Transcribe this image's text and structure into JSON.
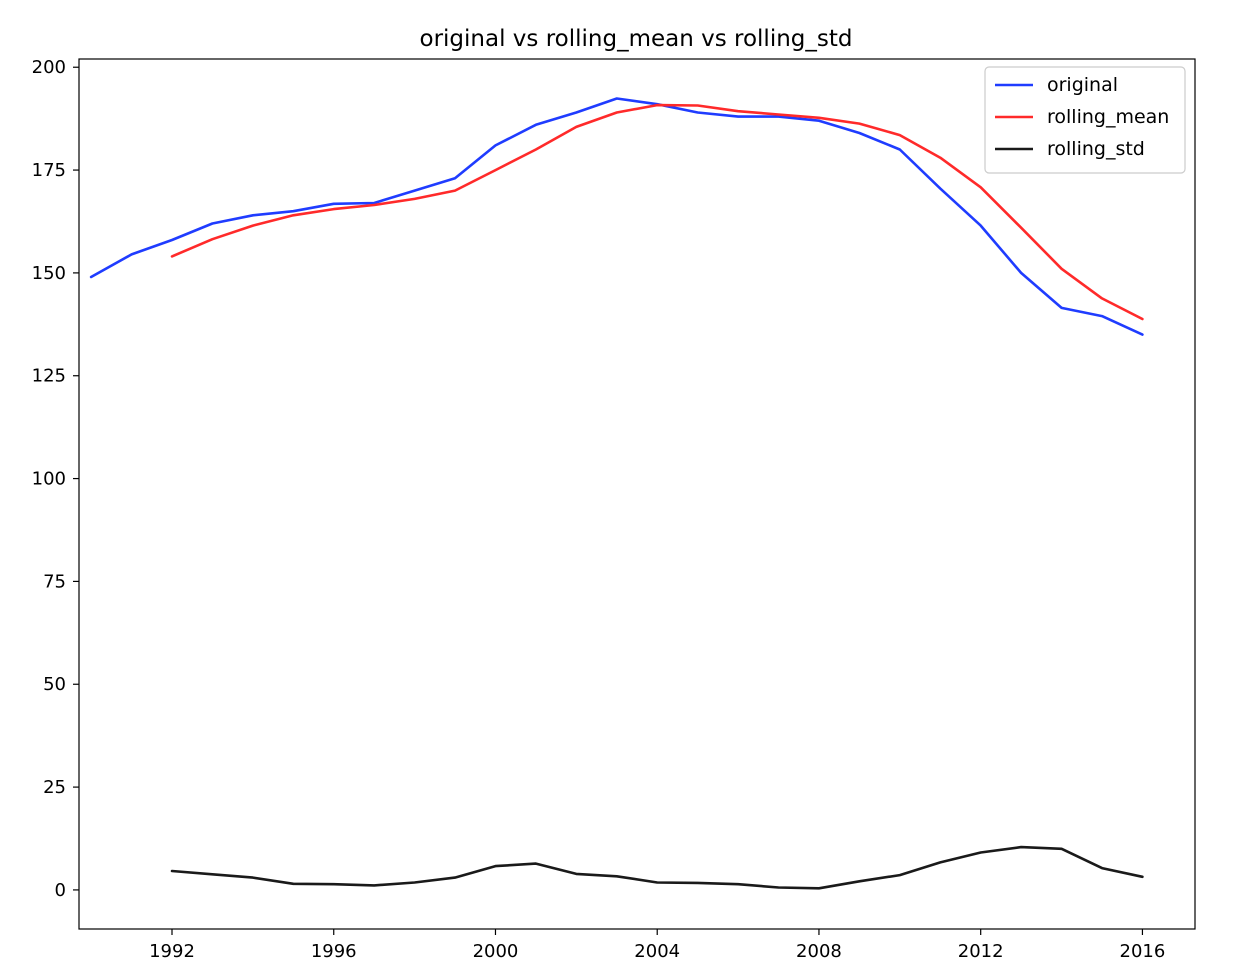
{
  "chart_data": {
    "type": "line",
    "title": "original vs rolling_mean vs rolling_std",
    "xlabel": "",
    "ylabel": "",
    "xlim": [
      1989.7,
      2017.3
    ],
    "ylim": [
      -9.5,
      202
    ],
    "x_ticks": [
      1992,
      1996,
      2000,
      2004,
      2008,
      2012,
      2016
    ],
    "y_ticks": [
      0,
      25,
      50,
      75,
      100,
      125,
      150,
      175,
      200
    ],
    "grid": false,
    "legend_position": "top-right",
    "series": [
      {
        "name": "original",
        "color": "#1f3cff",
        "x": [
          1990,
          1991,
          1992,
          1993,
          1994,
          1995,
          1996,
          1997,
          1998,
          1999,
          2000,
          2001,
          2002,
          2003,
          2004,
          2005,
          2006,
          2007,
          2008,
          2009,
          2010,
          2011,
          2012,
          2013,
          2014,
          2015,
          2016
        ],
        "values": [
          149,
          154.5,
          158,
          162,
          164,
          165,
          166.8,
          167,
          170,
          173,
          181,
          186,
          189,
          192.4,
          191,
          189,
          188,
          188,
          187,
          184,
          180,
          170.5,
          161.5,
          150,
          141.5,
          139.5,
          135
        ]
      },
      {
        "name": "rolling_mean",
        "color": "#ff2a2a",
        "x": [
          1992,
          1993,
          1994,
          1995,
          1996,
          1997,
          1998,
          1999,
          2000,
          2001,
          2002,
          2003,
          2004,
          2005,
          2006,
          2007,
          2008,
          2009,
          2010,
          2011,
          2012,
          2013,
          2014,
          2015,
          2016
        ],
        "values": [
          154,
          158.2,
          161.5,
          164,
          165.5,
          166.5,
          168,
          170,
          175,
          180,
          185.5,
          189,
          190.8,
          190.7,
          189.3,
          188.5,
          187.7,
          186.3,
          183.5,
          178,
          170.8,
          161,
          151,
          143.8,
          138.8
        ]
      },
      {
        "name": "rolling_std",
        "color": "#1a1a1a",
        "x": [
          1992,
          1993,
          1994,
          1995,
          1996,
          1997,
          1998,
          1999,
          2000,
          2001,
          2002,
          2003,
          2004,
          2005,
          2006,
          2007,
          2008,
          2009,
          2010,
          2011,
          2012,
          2013,
          2014,
          2015,
          2016
        ],
        "values": [
          4.6,
          3.8,
          3,
          1.5,
          1.4,
          1.1,
          1.8,
          3,
          5.8,
          6.4,
          3.9,
          3.3,
          1.8,
          1.7,
          1.4,
          0.6,
          0.4,
          2.1,
          3.6,
          6.7,
          9.1,
          10.4,
          10,
          5.3,
          3.2
        ]
      }
    ]
  }
}
